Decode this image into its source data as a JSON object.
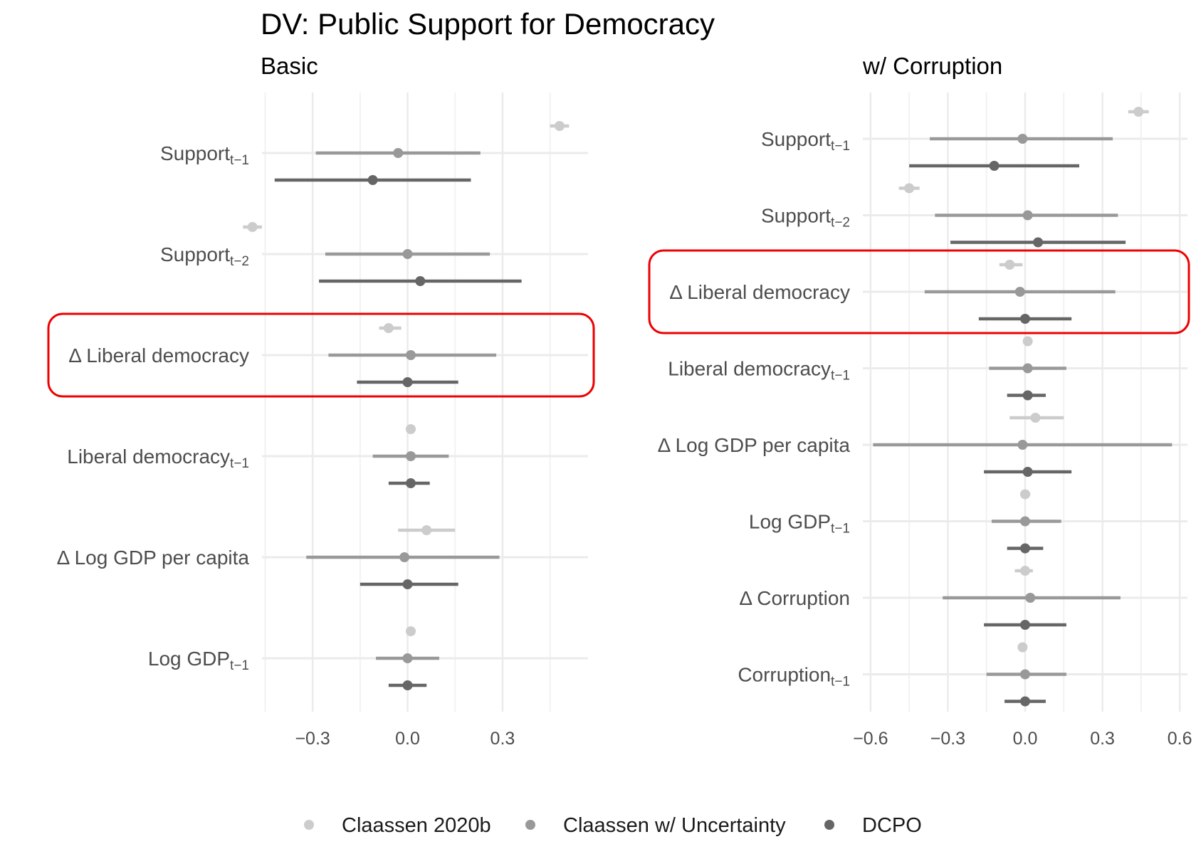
{
  "title": "DV: Public Support for Democracy",
  "legend": [
    {
      "label": "Claassen 2020b",
      "color": "#cccccc"
    },
    {
      "label": "Claassen w/ Uncertainty",
      "color": "#999999"
    },
    {
      "label": "DCPO",
      "color": "#666666"
    }
  ],
  "highlight_color": "#ee0000",
  "chart_data": [
    {
      "type": "scatter",
      "subtitle": "Basic",
      "xlim": [
        -0.46,
        0.57
      ],
      "xticks": [
        -0.3,
        0.0,
        0.3
      ],
      "xtick_labels": [
        "−0.3",
        "0.0",
        "0.3"
      ],
      "grid": true,
      "legend_position": "bottom",
      "highlighted_term": "Δ Liberal democracy",
      "series": [
        {
          "name": "Claassen 2020b",
          "color": "#cccccc"
        },
        {
          "name": "Claassen w/ Uncertainty",
          "color": "#999999"
        },
        {
          "name": "DCPO",
          "color": "#666666"
        }
      ],
      "terms": [
        {
          "label": "Support",
          "sub": "t−1",
          "estimates": [
            {
              "est": 0.48,
              "lo": 0.45,
              "hi": 0.51
            },
            {
              "est": -0.03,
              "lo": -0.29,
              "hi": 0.23
            },
            {
              "est": -0.11,
              "lo": -0.42,
              "hi": 0.2
            }
          ]
        },
        {
          "label": "Support",
          "sub": "t−2",
          "estimates": [
            {
              "est": -0.49,
              "lo": -0.52,
              "hi": -0.46
            },
            {
              "est": 0.0,
              "lo": -0.26,
              "hi": 0.26
            },
            {
              "est": 0.04,
              "lo": -0.28,
              "hi": 0.36
            }
          ]
        },
        {
          "label": "Δ Liberal democracy",
          "sub": "",
          "estimates": [
            {
              "est": -0.06,
              "lo": -0.09,
              "hi": -0.02
            },
            {
              "est": 0.01,
              "lo": -0.25,
              "hi": 0.28
            },
            {
              "est": 0.0,
              "lo": -0.16,
              "hi": 0.16
            }
          ]
        },
        {
          "label": "Liberal democracy",
          "sub": "t−1",
          "estimates": [
            {
              "est": 0.01,
              "lo": 0.0,
              "hi": 0.02
            },
            {
              "est": 0.01,
              "lo": -0.11,
              "hi": 0.13
            },
            {
              "est": 0.01,
              "lo": -0.06,
              "hi": 0.07
            }
          ]
        },
        {
          "label": "Δ Log GDP per capita",
          "sub": "",
          "estimates": [
            {
              "est": 0.06,
              "lo": -0.03,
              "hi": 0.15
            },
            {
              "est": -0.01,
              "lo": -0.32,
              "hi": 0.29
            },
            {
              "est": 0.0,
              "lo": -0.15,
              "hi": 0.16
            }
          ]
        },
        {
          "label": "Log GDP",
          "sub": "t−1",
          "estimates": [
            {
              "est": 0.01,
              "lo": 0.0,
              "hi": 0.02
            },
            {
              "est": 0.0,
              "lo": -0.1,
              "hi": 0.1
            },
            {
              "est": 0.0,
              "lo": -0.06,
              "hi": 0.06
            }
          ]
        }
      ]
    },
    {
      "type": "scatter",
      "subtitle": "w/ Corruption",
      "xlim": [
        -0.63,
        0.63
      ],
      "xticks": [
        -0.6,
        -0.3,
        0.0,
        0.3,
        0.6
      ],
      "xtick_labels": [
        "−0.6",
        "−0.3",
        "0.0",
        "0.3",
        "0.6"
      ],
      "grid": true,
      "legend_position": "bottom",
      "highlighted_term": "Δ Liberal democracy",
      "series": [
        {
          "name": "Claassen 2020b",
          "color": "#cccccc"
        },
        {
          "name": "Claassen w/ Uncertainty",
          "color": "#999999"
        },
        {
          "name": "DCPO",
          "color": "#666666"
        }
      ],
      "terms": [
        {
          "label": "Support",
          "sub": "t−1",
          "estimates": [
            {
              "est": 0.44,
              "lo": 0.4,
              "hi": 0.48
            },
            {
              "est": -0.01,
              "lo": -0.37,
              "hi": 0.34
            },
            {
              "est": -0.12,
              "lo": -0.45,
              "hi": 0.21
            }
          ]
        },
        {
          "label": "Support",
          "sub": "t−2",
          "estimates": [
            {
              "est": -0.45,
              "lo": -0.49,
              "hi": -0.41
            },
            {
              "est": 0.01,
              "lo": -0.35,
              "hi": 0.36
            },
            {
              "est": 0.05,
              "lo": -0.29,
              "hi": 0.39
            }
          ]
        },
        {
          "label": "Δ Liberal democracy",
          "sub": "",
          "estimates": [
            {
              "est": -0.06,
              "lo": -0.1,
              "hi": -0.01
            },
            {
              "est": -0.02,
              "lo": -0.39,
              "hi": 0.35
            },
            {
              "est": 0.0,
              "lo": -0.18,
              "hi": 0.18
            }
          ]
        },
        {
          "label": "Liberal democracy",
          "sub": "t−1",
          "estimates": [
            {
              "est": 0.01,
              "lo": 0.0,
              "hi": 0.02
            },
            {
              "est": 0.01,
              "lo": -0.14,
              "hi": 0.16
            },
            {
              "est": 0.01,
              "lo": -0.07,
              "hi": 0.08
            }
          ]
        },
        {
          "label": "Δ Log GDP per capita",
          "sub": "",
          "estimates": [
            {
              "est": 0.04,
              "lo": -0.06,
              "hi": 0.15
            },
            {
              "est": -0.01,
              "lo": -0.59,
              "hi": 0.57
            },
            {
              "est": 0.01,
              "lo": -0.16,
              "hi": 0.18
            }
          ]
        },
        {
          "label": "Log GDP",
          "sub": "t−1",
          "estimates": [
            {
              "est": 0.0,
              "lo": -0.01,
              "hi": 0.02
            },
            {
              "est": 0.0,
              "lo": -0.13,
              "hi": 0.14
            },
            {
              "est": 0.0,
              "lo": -0.07,
              "hi": 0.07
            }
          ]
        },
        {
          "label": "Δ Corruption",
          "sub": "",
          "estimates": [
            {
              "est": 0.0,
              "lo": -0.04,
              "hi": 0.03
            },
            {
              "est": 0.02,
              "lo": -0.32,
              "hi": 0.37
            },
            {
              "est": 0.0,
              "lo": -0.16,
              "hi": 0.16
            }
          ]
        },
        {
          "label": "Corruption",
          "sub": "t−1",
          "estimates": [
            {
              "est": -0.01,
              "lo": -0.02,
              "hi": 0.0
            },
            {
              "est": 0.0,
              "lo": -0.15,
              "hi": 0.16
            },
            {
              "est": 0.0,
              "lo": -0.08,
              "hi": 0.08
            }
          ]
        }
      ]
    }
  ]
}
